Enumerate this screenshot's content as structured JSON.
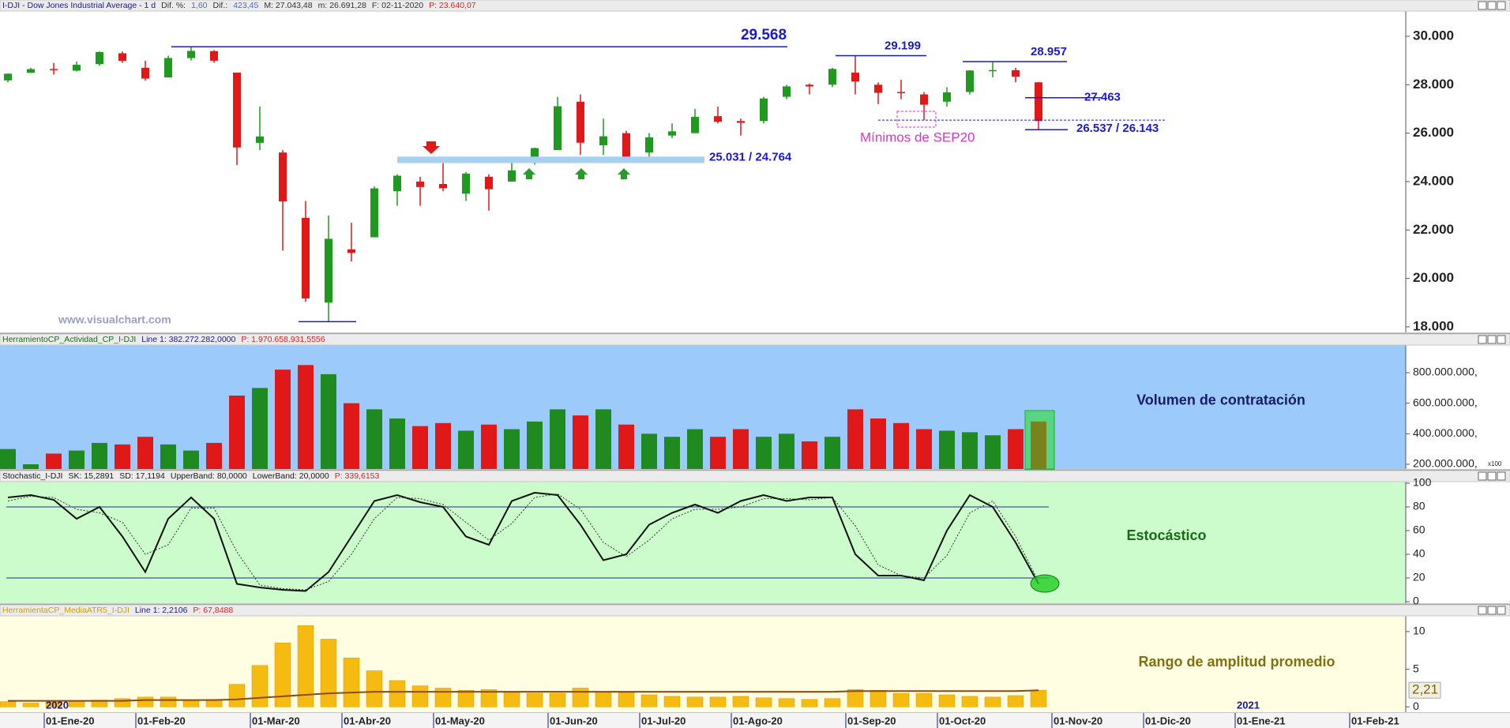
{
  "chart_data": [
    {
      "type": "candlestick",
      "header": [
        {
          "text": "I-DJI - Dow Jones Industrial Average - 1 d",
          "color": "#1a1a8a"
        },
        {
          "text": "Dif. %:",
          "color": "#333333"
        },
        {
          "text": "1,60",
          "color": "#4a6ad0"
        },
        {
          "text": "Dif.:",
          "color": "#333333"
        },
        {
          "text": "423,45",
          "color": "#4a6ad0"
        },
        {
          "text": "M: 27.043,48",
          "color": "#333333"
        },
        {
          "text": "m: 26.691,28",
          "color": "#333333"
        },
        {
          "text": "F: 02-11-2020",
          "color": "#333333"
        },
        {
          "text": "P: 23.640,07",
          "color": "#e02020"
        }
      ],
      "categories": [
        null,
        null,
        "01-Ene-20",
        null,
        null,
        null,
        "01-Feb-20",
        null,
        null,
        null,
        null,
        "01-Mar-20",
        null,
        null,
        null,
        "01-Abr-20",
        null,
        null,
        null,
        "01-May-20",
        null,
        null,
        null,
        null,
        "01-Jun-20",
        null,
        null,
        null,
        "01-Jul-20",
        null,
        null,
        null,
        "01-Ago-20",
        null,
        null,
        null,
        null,
        "01-Sep-20",
        null,
        null,
        null,
        "01-Oct-20",
        null,
        null,
        null,
        null,
        "01-Nov-20",
        null,
        null,
        null,
        "01-Dic-20",
        null,
        null,
        null,
        "01-Ene-21",
        null,
        null,
        null,
        null,
        "01-Feb-21",
        null
      ],
      "year_labels": [
        "2020",
        "2021"
      ],
      "ohlc": [
        [
          28180,
          28470,
          28100,
          28455
        ],
        [
          28490,
          28700,
          28490,
          28645
        ],
        [
          28650,
          28900,
          28420,
          28634
        ],
        [
          28580,
          28960,
          28550,
          28823
        ],
        [
          28850,
          29375,
          28780,
          29348
        ],
        [
          29300,
          29370,
          28900,
          28989
        ],
        [
          28700,
          28990,
          28170,
          28256
        ],
        [
          28300,
          29200,
          28300,
          29102
        ],
        [
          29100,
          29568,
          29000,
          29398
        ],
        [
          29390,
          29430,
          28900,
          28992
        ],
        [
          28500,
          28500,
          24681,
          25409
        ],
        [
          25600,
          27100,
          25300,
          25864
        ],
        [
          25200,
          25300,
          21150,
          23185
        ],
        [
          22500,
          23200,
          19030,
          19174
        ],
        [
          19000,
          22600,
          18213,
          21636
        ],
        [
          21200,
          22300,
          20700,
          21052
        ],
        [
          21700,
          23800,
          21700,
          23719
        ],
        [
          23600,
          24300,
          23000,
          24242
        ],
        [
          24000,
          24200,
          23000,
          23775
        ],
        [
          23900,
          24760,
          23600,
          23724
        ],
        [
          23500,
          24400,
          23200,
          24331
        ],
        [
          24200,
          24300,
          22800,
          23685
        ],
        [
          24000,
          24800,
          24000,
          24465
        ],
        [
          25000,
          25400,
          24700,
          25383
        ],
        [
          25300,
          27500,
          25300,
          27111
        ],
        [
          27300,
          27600,
          25100,
          25605
        ],
        [
          25500,
          26600,
          25100,
          25871
        ],
        [
          26000,
          26100,
          24900,
          25015
        ],
        [
          25200,
          26000,
          24900,
          25827
        ],
        [
          25900,
          26400,
          25800,
          26075
        ],
        [
          26000,
          27000,
          26000,
          26671
        ],
        [
          26700,
          27100,
          26400,
          26469
        ],
        [
          26500,
          26600,
          25900,
          26428
        ],
        [
          26500,
          27500,
          26400,
          27433
        ],
        [
          27500,
          28000,
          27400,
          27931
        ],
        [
          28000,
          28050,
          27600,
          27930
        ],
        [
          28000,
          28700,
          27900,
          28653
        ],
        [
          28500,
          29199,
          27600,
          28133
        ],
        [
          28000,
          28100,
          27200,
          27666
        ],
        [
          27700,
          28200,
          27400,
          27657
        ],
        [
          27600,
          27700,
          26537,
          27174
        ],
        [
          27300,
          27900,
          27100,
          27683
        ],
        [
          27700,
          28600,
          27600,
          28587
        ],
        [
          28600,
          28957,
          28300,
          28606
        ],
        [
          28600,
          28700,
          28100,
          28335
        ],
        [
          28100,
          28100,
          26143,
          26502
        ],
        null,
        null,
        null,
        null,
        null,
        null,
        null,
        null,
        null,
        null,
        null,
        null,
        null,
        null,
        null
      ],
      "up_color": "#1f9a1f",
      "down_color": "#e01818",
      "ylim": [
        17770,
        31010
      ],
      "yticks": [
        {
          "value": 18000,
          "label": "18.000"
        },
        {
          "value": 20000,
          "label": "20.000"
        },
        {
          "value": 22000,
          "label": "22.000"
        },
        {
          "value": 24000,
          "label": "24.000"
        },
        {
          "value": 26000,
          "label": "26.000"
        },
        {
          "value": 28000,
          "label": "28.000"
        },
        {
          "value": 30000,
          "label": "30.000"
        }
      ],
      "levels": [
        {
          "value": 29568,
          "label": "29.568"
        },
        {
          "value": 29199,
          "label": "29.199"
        },
        {
          "value": 28957,
          "label": "28.957"
        },
        {
          "value": 27463,
          "label": "27.463"
        },
        {
          "value": 18213
        }
      ],
      "range_level": {
        "values": [
          26537,
          26143
        ],
        "label": "26.537 / 26.143"
      },
      "support_band": {
        "values": [
          25031,
          24764
        ],
        "label": "25.031 / 24.764",
        "color": "#a8d0f0"
      },
      "level_color": "#1a1acc",
      "annotation": {
        "text": "Mínimos de SEP20",
        "color": "#e030c8"
      },
      "watermark": "www.visualchart.com"
    },
    {
      "type": "bar",
      "header": [
        {
          "text": "HerramientoCP_Actividad_CP_I-DJI",
          "color": "#1a6a1a"
        },
        {
          "text": "Line 1: 382.272.282,0000",
          "color": "#1a1a8a"
        },
        {
          "text": "P: 1.970.658.931,5556",
          "color": "#e02020"
        }
      ],
      "title": "Volumen de contratación",
      "values": [
        300000000,
        200000000,
        270000000,
        290000000,
        340000000,
        330000000,
        380000000,
        330000000,
        290000000,
        340000000,
        650000000,
        700000000,
        820000000,
        850000000,
        790000000,
        600000000,
        560000000,
        500000000,
        450000000,
        470000000,
        420000000,
        460000000,
        430000000,
        480000000,
        560000000,
        520000000,
        560000000,
        460000000,
        400000000,
        380000000,
        430000000,
        380000000,
        430000000,
        380000000,
        400000000,
        350000000,
        380000000,
        560000000,
        500000000,
        470000000,
        430000000,
        420000000,
        410000000,
        390000000,
        430000000,
        480000000,
        null,
        null,
        null,
        null,
        null,
        null,
        null,
        null,
        null,
        null,
        null,
        null,
        null,
        null,
        null
      ],
      "up_color": "#1f8a1f",
      "down_color": "#e01818",
      "background": "#9ccafa",
      "ylim": [
        169000000,
        981000000
      ],
      "yticks": [
        {
          "value": 200000000,
          "label": "200.000.000,"
        },
        {
          "value": 400000000,
          "label": "400.000.000,"
        },
        {
          "value": 600000000,
          "label": "600.000.000,"
        },
        {
          "value": 800000000,
          "label": "800.000.000,"
        }
      ],
      "axis_note": "x100"
    },
    {
      "type": "line",
      "header": [
        {
          "text": "Stochastic_I-DJI",
          "color": "#1a1a1a"
        },
        {
          "text": "SK: 15,2891",
          "color": "#1a1a1a"
        },
        {
          "text": "SD: 17,1194",
          "color": "#1a1a1a"
        },
        {
          "text": "UpperBand: 80,0000",
          "color": "#1a1a1a"
        },
        {
          "text": "LowerBand: 20,0000",
          "color": "#1a1a1a"
        },
        {
          "text": "P: 339,6153",
          "color": "#e02020"
        }
      ],
      "title": "Estocástico",
      "series": [
        {
          "color": "#111111",
          "values": [
            88,
            90,
            86,
            70,
            80,
            55,
            25,
            70,
            88,
            70,
            15,
            12,
            10,
            9,
            25,
            55,
            85,
            90,
            84,
            80,
            55,
            48,
            85,
            92,
            90,
            65,
            35,
            40,
            65,
            75,
            82,
            75,
            85,
            90,
            85,
            88,
            88,
            40,
            22,
            22,
            18,
            60,
            90,
            80,
            50,
            15,
            null,
            null,
            null,
            null,
            null,
            null,
            null,
            null,
            null,
            null,
            null,
            null,
            null,
            null,
            null
          ]
        },
        {
          "color": "#333333",
          "values": [
            85,
            89,
            88,
            78,
            75,
            67,
            40,
            48,
            79,
            79,
            42,
            14,
            11,
            10,
            17,
            40,
            70,
            88,
            87,
            82,
            67,
            52,
            66,
            88,
            91,
            78,
            50,
            38,
            52,
            70,
            78,
            78,
            80,
            87,
            87,
            86,
            88,
            64,
            31,
            22,
            20,
            39,
            75,
            85,
            55,
            17,
            null,
            null,
            null,
            null,
            null,
            null,
            null,
            null,
            null,
            null,
            null,
            null,
            null,
            null,
            null
          ]
        }
      ],
      "bands": [
        80,
        20
      ],
      "band_color": "#2a2a9a",
      "background": "#ccfccc",
      "ylim": [
        0,
        100
      ],
      "yticks": [
        0,
        20,
        40,
        60,
        80,
        100
      ]
    },
    {
      "type": "bar",
      "header": [
        {
          "text": "HerramientaCP_MediaATR5_I-DJI",
          "color": "#d0a000"
        },
        {
          "text": "Line 1: 2,2106",
          "color": "#1a1a8a"
        },
        {
          "text": "P: 67,8488",
          "color": "#e02020"
        }
      ],
      "title": "Rango de amplitud promedio",
      "values": [
        0.7,
        0.5,
        0.8,
        0.8,
        0.9,
        1.1,
        1.3,
        1.3,
        0.9,
        1.0,
        3.0,
        5.5,
        8.5,
        10.8,
        9.0,
        6.5,
        4.8,
        3.5,
        2.8,
        2.5,
        2.2,
        2.3,
        2.0,
        1.8,
        1.8,
        2.5,
        2.0,
        1.9,
        1.6,
        1.4,
        1.3,
        1.3,
        1.4,
        1.2,
        1.1,
        1.0,
        1.1,
        2.3,
        2.2,
        1.8,
        1.8,
        1.6,
        1.4,
        1.3,
        1.5,
        2.21,
        null,
        null,
        null,
        null,
        null,
        null,
        null,
        null,
        null,
        null,
        null,
        null,
        null,
        null,
        null
      ],
      "color": "#f6bb10",
      "line": {
        "color": "#8a4a10",
        "values": [
          0.8,
          0.8,
          0.8,
          0.8,
          0.8,
          0.8,
          0.9,
          0.9,
          0.9,
          0.9,
          1.0,
          1.2,
          1.4,
          1.6,
          1.8,
          1.9,
          2.0,
          2.0,
          2.0,
          2.0,
          2.0,
          2.0,
          2.0,
          2.0,
          2.0,
          2.0,
          2.0,
          2.0,
          2.0,
          2.0,
          2.0,
          2.0,
          2.0,
          2.0,
          2.0,
          2.0,
          2.0,
          2.1,
          2.1,
          2.1,
          2.1,
          2.1,
          2.1,
          2.1,
          2.1,
          2.2,
          null,
          null,
          null,
          null,
          null,
          null,
          null,
          null,
          null,
          null,
          null,
          null,
          null,
          null,
          null
        ]
      },
      "background": "#fffde2",
      "last_value_label": {
        "value": 2.21,
        "label": "2,21"
      },
      "ylim": [
        -0.5,
        12.3
      ],
      "yticks": [
        0,
        5,
        10
      ]
    }
  ]
}
